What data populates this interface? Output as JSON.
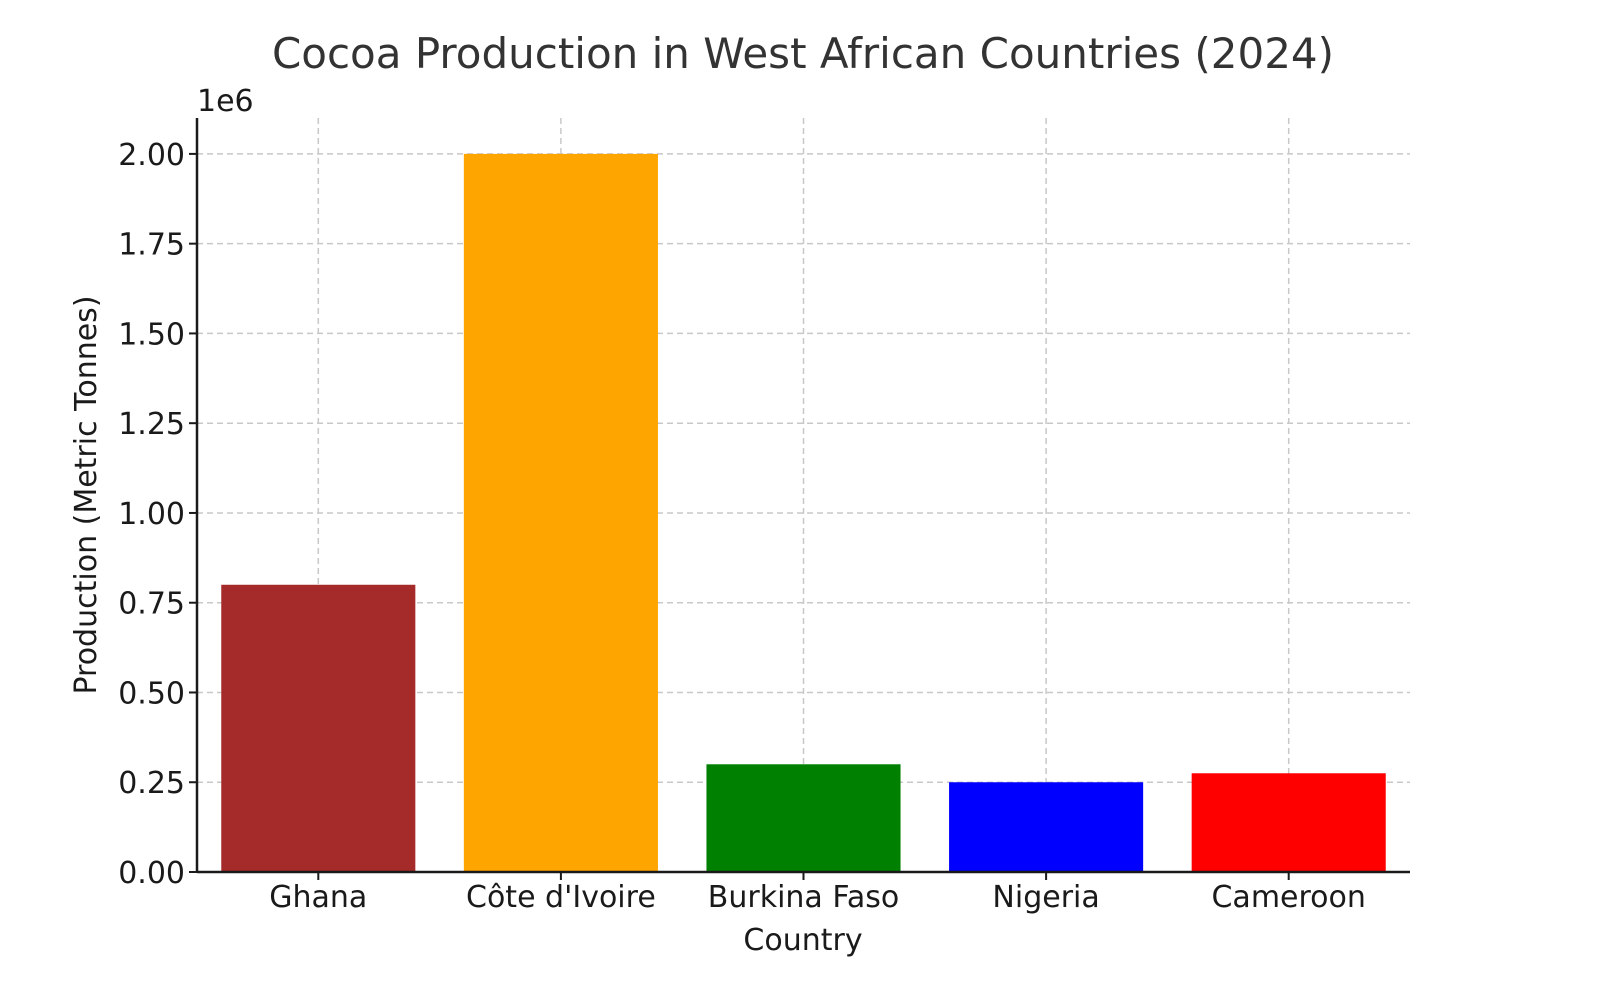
{
  "chart_data": {
    "type": "bar",
    "title": "Cocoa Production in West African Countries (2024)",
    "xlabel": "Country",
    "ylabel": "Production (Metric Tonnes)",
    "y_scale_label": "1e6",
    "categories": [
      "Ghana",
      "Côte d'Ivoire",
      "Burkina Faso",
      "Nigeria",
      "Cameroon"
    ],
    "values": [
      800000,
      2000000,
      300000,
      250000,
      275000
    ],
    "colors": [
      "#a52a2a",
      "#ffa500",
      "#008000",
      "#0000ff",
      "#ff0000"
    ],
    "ylim": [
      0,
      2100000
    ],
    "yticks": [
      0,
      250000,
      500000,
      750000,
      1000000,
      1250000,
      1500000,
      1750000,
      2000000
    ],
    "ytick_labels": [
      "0.00",
      "0.25",
      "0.50",
      "0.75",
      "1.00",
      "1.25",
      "1.50",
      "1.75",
      "2.00"
    ],
    "grid": true,
    "legend": "none"
  }
}
